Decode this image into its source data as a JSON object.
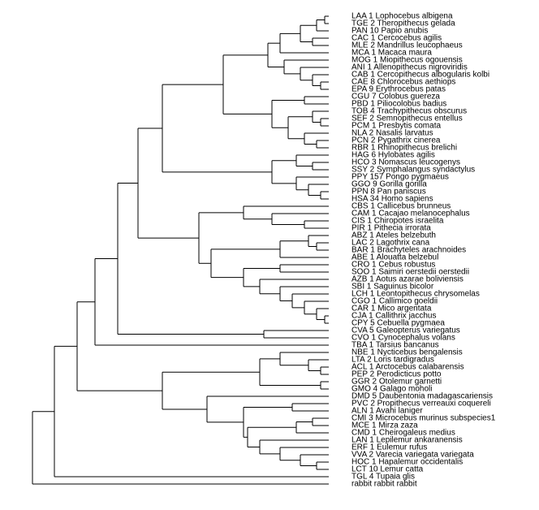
{
  "leaves": [
    "LAA 1 Lophocebus albigena",
    "TGE 2 Theropithecus gelada",
    "PAN 10 Papio anubis",
    "CAC 1 Cercocebus agilis",
    "MLE 2 Mandrillus leucophaeus",
    "MCA 1 Macaca maura",
    "MOG 1 Miopithecus ogouensis",
    "ANI 1 Allenopithecus nigroviridis",
    "CAB 1 Cercopithecus albogularis kolbi",
    "CAE 8 Chlorocebus aethiops",
    "EPA 9 Erythrocebus patas",
    "CGU 7 Colobus guereza",
    "PBD 1 Piliocolobus badius",
    "TOB 4 Trachypithecus obscurus",
    "SEF 2 Semnopithecus entellus",
    "PCM 1 Presbytis comata",
    "NLA 2 Nasalis larvatus",
    "PCN 2 Pygathrix cinerea",
    "RBR 1 Rhinopithecus brelichi",
    "HAG 6 Hylobates agilis",
    "HCO 3 Nomascus leucogenys",
    "SSY 2 Symphalangus syndactylus",
    "PPY 157 Pongo pygmaeus",
    "GGO 9 Gorilla gorilla",
    "PPN 8 Pan paniscus",
    "HSA 34 Homo sapiens",
    "CBS 1 Callicebus brunneus",
    "CAM 1 Cacajao melanocephalus",
    "CIS 1 Chiropotes israelita",
    "PIR 1 Pithecia irrorata",
    "ABZ 1 Ateles belzebuth",
    "LAC 2 Lagothrix cana",
    "BAR 1 Brachyteles arachnoides",
    "ABE 1 Alouatta belzebul",
    "CRO 1 Cebus robustus",
    "SOO 1 Saimiri oerstedii oerstedii",
    "AZB 1 Aotus azarae boliviensis",
    "SBI 1 Saguinus bicolor",
    "LCH 1 Leontopithecus chrysomelas",
    "CGO 1 Callimico goeldii",
    "CAR 1 Mico argentata",
    "CJA 1 Callithrix jacchus",
    "CPY 5 Cebuella pygmaea",
    "CVA 5 Galeopterus variegatus",
    "CVO 1 Cynocephalus volans",
    "TBA 1 Tarsius bancanus",
    "NBE 1 Nycticebus bengalensis",
    "LTA 2 Loris tardigradus",
    "ACL 1 Arctocebus calabarensis",
    "PEP 2 Perodicticus potto",
    "GGR 2 Otolemur garnetti",
    "GMO 4 Galago moholi",
    "DMD 5 Daubentonia madagascariensis",
    "PVC 2 Propithecus verreauxi coquereli",
    "ALN 1 Avahi laniger",
    "CMI 3 Microcebus murinus subspecies1",
    "MCE 1 Mirza zaza",
    "CMD 1 Cheirogaleus medius",
    "LAN 1 Lepilemur ankaranensis",
    "ERF 1 Eulemur rufus",
    "VVA 2 Varecia variegata variegata",
    "HOC 1 Hapalemur occidentalis",
    "LCT 10 Lemur catta",
    "TGL 4 Tupaia glis",
    "rabbit rabbit rabbit"
  ]
}
